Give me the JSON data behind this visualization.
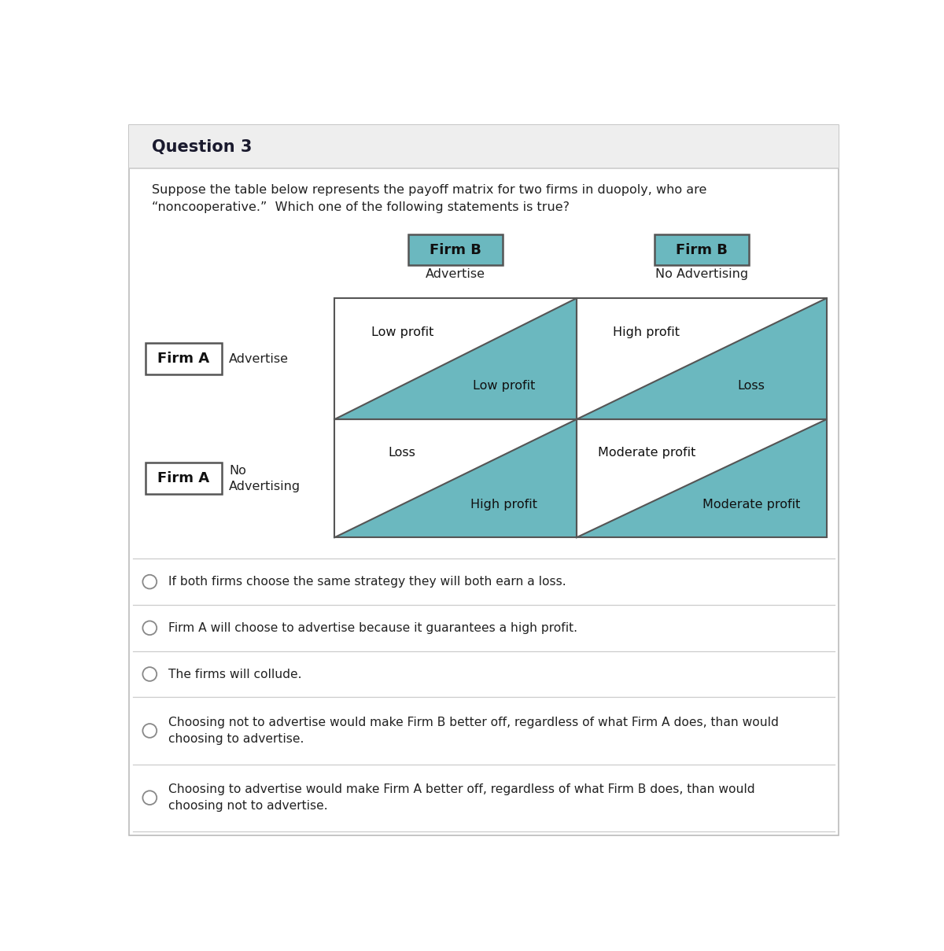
{
  "title": "Question 3",
  "question_text": "Suppose the table below represents the payoff matrix for two firms in duopoly, who are\n“noncooperative.”  Which one of the following statements is true?",
  "firm_b_col1_label": "Firm B",
  "firm_b_col1_sublabel": "Advertise",
  "firm_b_col2_label": "Firm B",
  "firm_b_col2_sublabel": "No Advertising",
  "firm_a_row1_label": "Firm A",
  "firm_a_row1_sublabel": "Advertise",
  "firm_a_row2_label": "Firm A",
  "firm_a_row2_sublabel": "No\nAdvertising",
  "cell_top_left_top": "Low profit",
  "cell_top_left_bottom": "Low profit",
  "cell_top_right_top": "High profit",
  "cell_top_right_bottom": "Loss",
  "cell_bottom_left_top": "Loss",
  "cell_bottom_left_bottom": "High profit",
  "cell_bottom_right_top": "Moderate profit",
  "cell_bottom_right_bottom": "Moderate profit",
  "teal_color": "#6BB8BF",
  "cell_border_color": "#555555",
  "bg_color": "#FFFFFF",
  "header_bg": "#EEEEEE",
  "separator_color": "#CCCCCC",
  "outer_border_color": "#BBBBBB",
  "text_color": "#222222",
  "title_color": "#1a1a2e",
  "options": [
    "If both firms choose the same strategy they will both earn a loss.",
    "Firm A will choose to advertise because it guarantees a high profit.",
    "The firms will collude.",
    "Choosing not to advertise would make Firm B better off, regardless of what Firm A does, than would\nchoosing to advertise.",
    "Choosing to advertise would make Firm A better off, regardless of what Firm B does, than would\nchoosing not to advertise."
  ]
}
